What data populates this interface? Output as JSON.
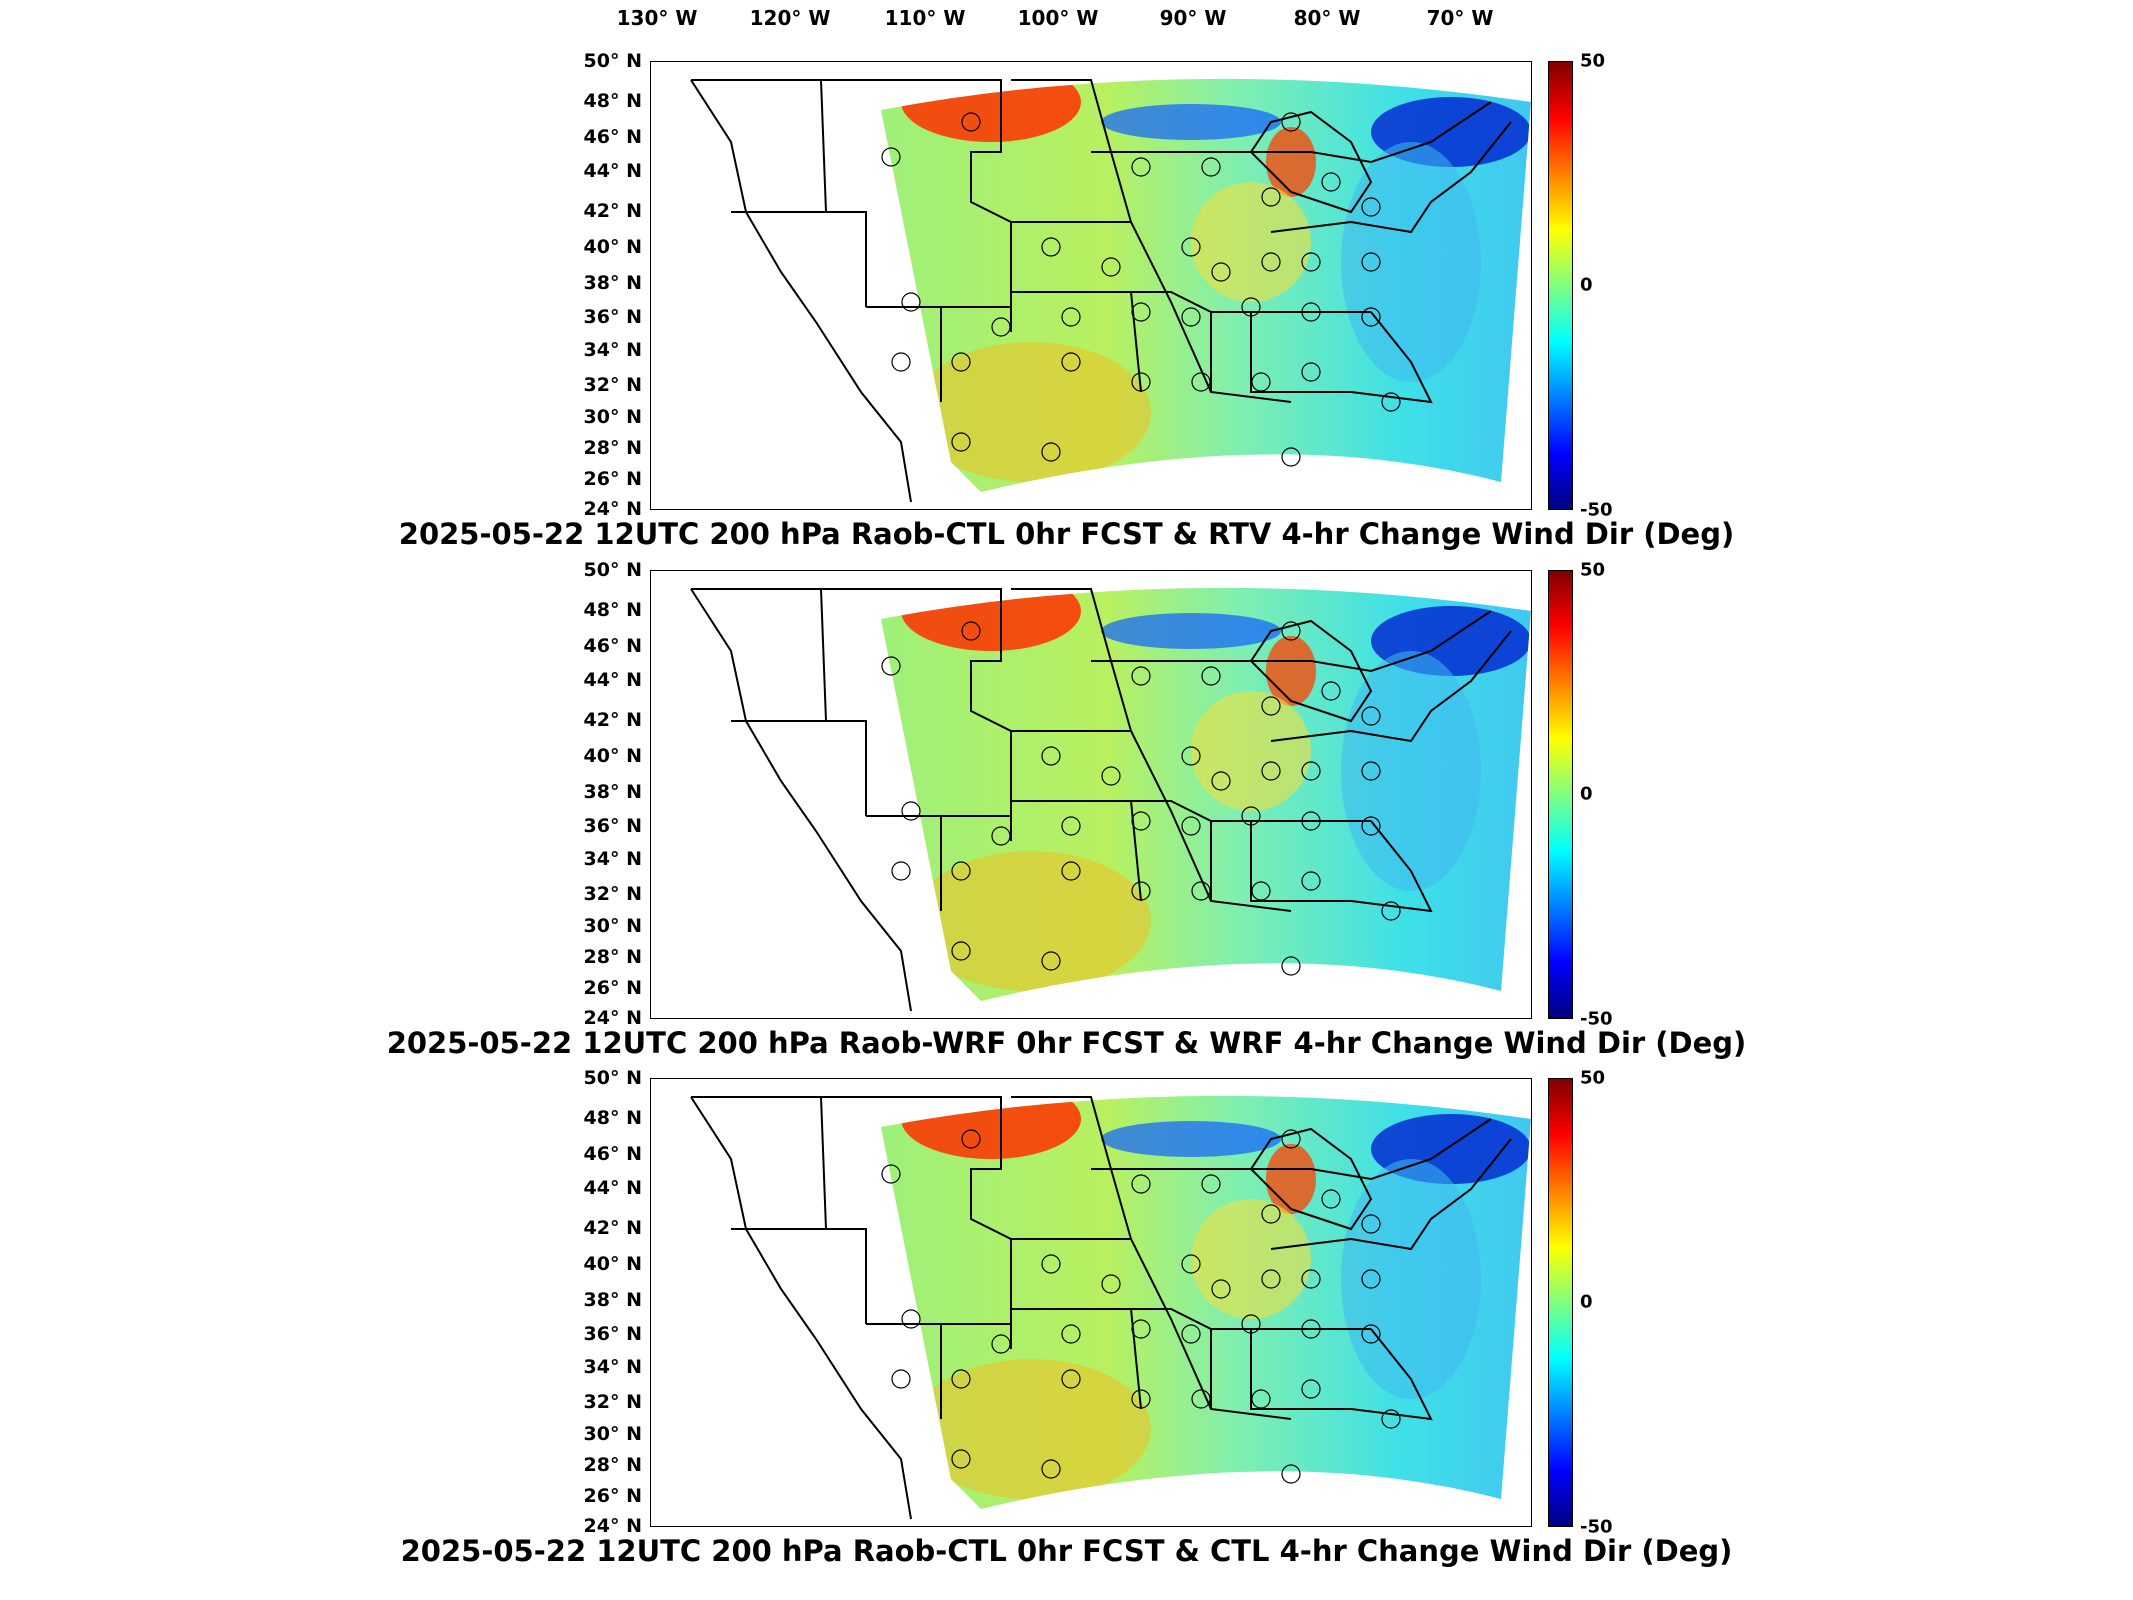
{
  "lon_labels": [
    "130° W",
    "120° W",
    "110° W",
    "100° W",
    "90° W",
    "80° W",
    "70° W"
  ],
  "lat_labels": [
    "50° N",
    "48° N",
    "46° N",
    "44° N",
    "42° N",
    "40° N",
    "38° N",
    "36° N",
    "34° N",
    "32° N",
    "30° N",
    "28° N",
    "26° N",
    "24° N"
  ],
  "colorbar": {
    "max": "50",
    "mid": "0",
    "min": "-50",
    "colors": [
      "#7f0000",
      "#ff0000",
      "#ff8000",
      "#ffff00",
      "#80ff80",
      "#00ffff",
      "#0080ff",
      "#0000ff",
      "#00007f"
    ]
  },
  "panels": [
    {
      "title": "2025-05-22 12UTC 200 hPa Raob-CTL 0hr FCST & RTV 4-hr Change Wind Dir (Deg)"
    },
    {
      "title": "2025-05-22 12UTC 200 hPa Raob-WRF 0hr FCST & WRF 4-hr Change Wind Dir (Deg)"
    },
    {
      "title": "2025-05-22 12UTC 200 hPa Raob-CTL 0hr FCST & CTL 4-hr Change Wind Dir (Deg)"
    }
  ]
}
